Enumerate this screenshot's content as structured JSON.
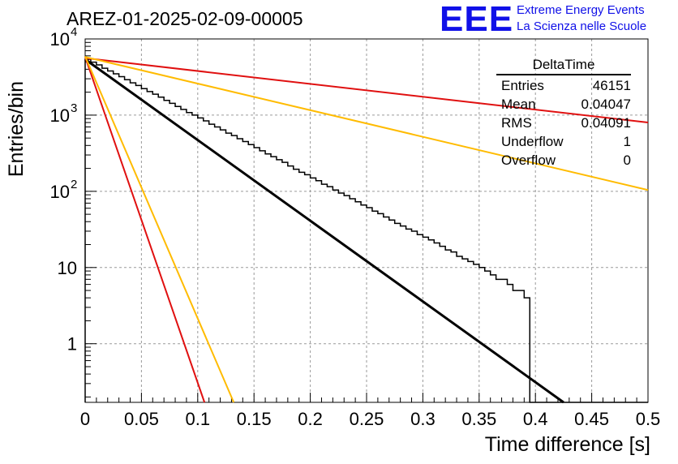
{
  "chart_data": {
    "type": "histogram",
    "title": "AREZ-01-2025-02-09-00005",
    "xlabel": "Time difference [s]",
    "ylabel": "Entries/bin",
    "xlim": [
      0,
      0.5
    ],
    "ylim": [
      0.17,
      10000
    ],
    "y_scale": "log",
    "grid": true,
    "x_ticks": [
      "0",
      "0.05",
      "0.1",
      "0.15",
      "0.2",
      "0.25",
      "0.3",
      "0.35",
      "0.4",
      "0.45",
      "0.5"
    ],
    "y_ticks": [
      {
        "value": 1,
        "label": "1"
      },
      {
        "value": 10,
        "label": "10"
      },
      {
        "value": 100,
        "label": "10",
        "exp": "2"
      },
      {
        "value": 1000,
        "label": "10",
        "exp": "3"
      },
      {
        "value": 10000,
        "label": "10",
        "exp": "4"
      }
    ],
    "histogram": {
      "bin_width": 0.005,
      "color": "#000000",
      "counts": [
        5400,
        4950,
        4570,
        4130,
        3800,
        3480,
        3200,
        2920,
        2650,
        2450,
        2230,
        2040,
        1880,
        1720,
        1560,
        1430,
        1300,
        1190,
        1080,
        1000,
        920,
        840,
        760,
        700,
        640,
        580,
        540,
        490,
        450,
        410,
        375,
        340,
        310,
        285,
        260,
        240,
        215,
        195,
        178,
        165,
        150,
        138,
        124,
        115,
        104,
        95,
        88,
        80,
        73,
        66,
        61,
        55,
        51,
        46,
        42,
        38,
        35,
        32,
        30,
        27,
        25,
        23,
        21,
        19,
        17,
        16,
        14,
        13,
        12,
        11,
        10,
        9,
        8,
        7,
        7,
        6,
        5,
        5,
        4,
        0,
        0,
        0,
        0,
        0,
        0,
        0,
        0,
        0,
        0,
        0,
        0,
        0,
        0,
        0,
        0,
        0,
        0,
        0,
        0,
        0
      ]
    },
    "lines": [
      {
        "color": "#000000",
        "width": 3,
        "points": [
          [
            0,
            5400
          ],
          [
            0.425,
            0.17
          ]
        ]
      },
      {
        "color": "#e01010",
        "width": 2,
        "points": [
          [
            0,
            5600
          ],
          [
            0.5,
            800
          ]
        ]
      },
      {
        "color": "#ffbb00",
        "width": 2,
        "points": [
          [
            0,
            5800
          ],
          [
            0.5,
            104
          ]
        ]
      },
      {
        "color": "#e01010",
        "width": 2,
        "points": [
          [
            0,
            5800
          ],
          [
            0.106,
            0.17
          ]
        ]
      },
      {
        "color": "#ffbb00",
        "width": 2,
        "points": [
          [
            0,
            5900
          ],
          [
            0.132,
            0.17
          ]
        ]
      }
    ]
  },
  "stats_box": {
    "title": "DeltaTime",
    "rows": [
      {
        "label": "Entries",
        "value": "46151"
      },
      {
        "label": "Mean",
        "value": "0.04047"
      },
      {
        "label": "RMS",
        "value": "0.04091"
      },
      {
        "label": "Underflow",
        "value": "1"
      },
      {
        "label": "Overflow",
        "value": "0"
      }
    ]
  },
  "logo": {
    "mark": "EEE",
    "line1": "Extreme Energy Events",
    "line2": "La Scienza nelle Scuole"
  }
}
